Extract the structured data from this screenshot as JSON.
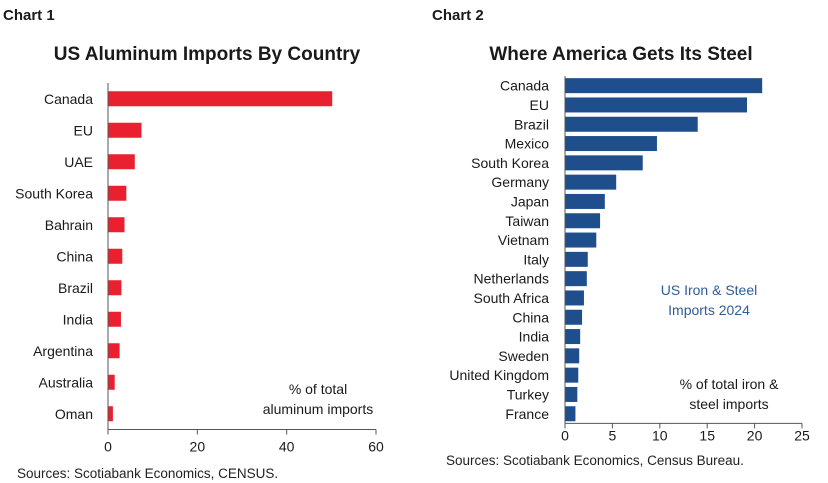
{
  "chart_data": [
    {
      "label": "Chart 1",
      "type": "bar",
      "orientation": "horizontal",
      "title": "US Aluminum Imports By Country",
      "categories": [
        "Canada",
        "EU",
        "UAE",
        "South Korea",
        "Bahrain",
        "China",
        "Brazil",
        "India",
        "Argentina",
        "Australia",
        "Oman"
      ],
      "values": [
        50.2,
        7.5,
        6.0,
        4.1,
        3.7,
        3.2,
        3.0,
        2.9,
        2.6,
        1.5,
        1.1
      ],
      "xlim": [
        0,
        60
      ],
      "xticks": [
        0,
        20,
        40,
        60
      ],
      "annotation": [
        "% of total",
        "aluminum imports"
      ],
      "source": "Sources: Scotiabank Economics, CENSUS.",
      "color": "#e8202f",
      "grid": false
    },
    {
      "label": "Chart 2",
      "type": "bar",
      "orientation": "horizontal",
      "title": "Where America Gets Its Steel",
      "categories": [
        "Canada",
        "EU",
        "Brazil",
        "Mexico",
        "South Korea",
        "Germany",
        "Japan",
        "Taiwan",
        "Vietnam",
        "Italy",
        "Netherlands",
        "South Africa",
        "China",
        "India",
        "Sweden",
        "United Kingdom",
        "Turkey",
        "France"
      ],
      "values": [
        20.8,
        19.2,
        14.0,
        9.7,
        8.2,
        5.4,
        4.2,
        3.7,
        3.3,
        2.4,
        2.3,
        2.0,
        1.8,
        1.6,
        1.5,
        1.4,
        1.3,
        1.1
      ],
      "xlim": [
        0,
        25
      ],
      "xticks": [
        0,
        5,
        10,
        15,
        20,
        25
      ],
      "inner_label": [
        "US Iron & Steel",
        "Imports 2024"
      ],
      "annotation": [
        "% of total iron &",
        "steel imports"
      ],
      "source": "Sources: Scotiabank Economics, Census Bureau.",
      "color": "#1f4e8c",
      "inner_label_color": "#2e5d9a",
      "grid": false
    }
  ]
}
